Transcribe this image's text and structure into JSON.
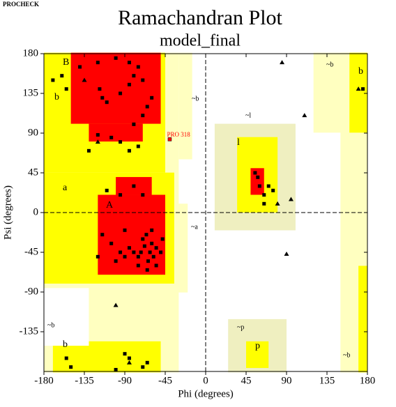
{
  "header": "PROCHECK",
  "chart_data": {
    "type": "scatter",
    "title": "Ramachandran Plot",
    "subtitle": "model_final",
    "x_label": "Phi (degrees)",
    "y_label": "Psi (degrees)",
    "xlim": [
      -180,
      180
    ],
    "ylim": [
      -180,
      180
    ],
    "xticks": [
      -180,
      -135,
      -90,
      -45,
      0,
      45,
      90,
      135,
      180
    ],
    "yticks": [
      -135,
      -90,
      -45,
      0,
      45,
      90,
      135,
      180
    ],
    "region_labels": [
      "B",
      "b",
      "A",
      "a",
      "~b",
      "~l",
      "l",
      "~a",
      "~p",
      "p",
      "~b",
      "~b",
      "b",
      "~b",
      "b"
    ],
    "annotations": [
      {
        "text": "PRO 318",
        "x": -40,
        "y": 83,
        "color": "#ff0000"
      }
    ],
    "series": [
      {
        "marker": "square",
        "color": "#000000",
        "x": [
          -120,
          -100,
          -85,
          -75,
          -140,
          -160,
          -170,
          -155,
          -118,
          -115,
          -110,
          -95,
          -85,
          -80,
          -70,
          -60,
          -65,
          -70,
          -80,
          -120,
          -130,
          -105,
          -95,
          -85,
          -75,
          -60,
          -62,
          -68,
          -70,
          -58,
          -64,
          -72,
          -55,
          -66,
          -75,
          -80,
          -85,
          -90,
          -95,
          -100,
          -105,
          -115,
          -90,
          -75,
          -65,
          -60,
          -50,
          -48,
          -120,
          -95,
          -110,
          -80,
          -70,
          -55,
          55,
          60,
          70,
          65,
          75,
          65,
          58,
          -155,
          -90,
          -85,
          -70,
          -65,
          -150,
          -100,
          175
        ],
        "values": [
          170,
          175,
          170,
          165,
          165,
          155,
          150,
          140,
          140,
          130,
          125,
          135,
          145,
          155,
          150,
          130,
          120,
          110,
          100,
          88,
          70,
          85,
          80,
          70,
          75,
          -35,
          -45,
          -38,
          -30,
          -50,
          -55,
          -45,
          -40,
          -25,
          -50,
          -45,
          -40,
          -50,
          -45,
          -55,
          -35,
          -25,
          -20,
          -60,
          -65,
          -20,
          -45,
          -30,
          -50,
          20,
          25,
          30,
          20,
          -60,
          45,
          30,
          30,
          20,
          25,
          10,
          40,
          -165,
          -160,
          -165,
          -175,
          -170,
          -175,
          -178,
          140
        ]
      },
      {
        "marker": "triangle",
        "color": "#000000",
        "x": [
          -135,
          -120,
          85,
          110,
          95,
          80,
          90,
          -100,
          -85,
          170
        ],
        "values": [
          150,
          80,
          170,
          110,
          15,
          10,
          -47,
          -105,
          -170,
          140
        ]
      }
    ]
  }
}
